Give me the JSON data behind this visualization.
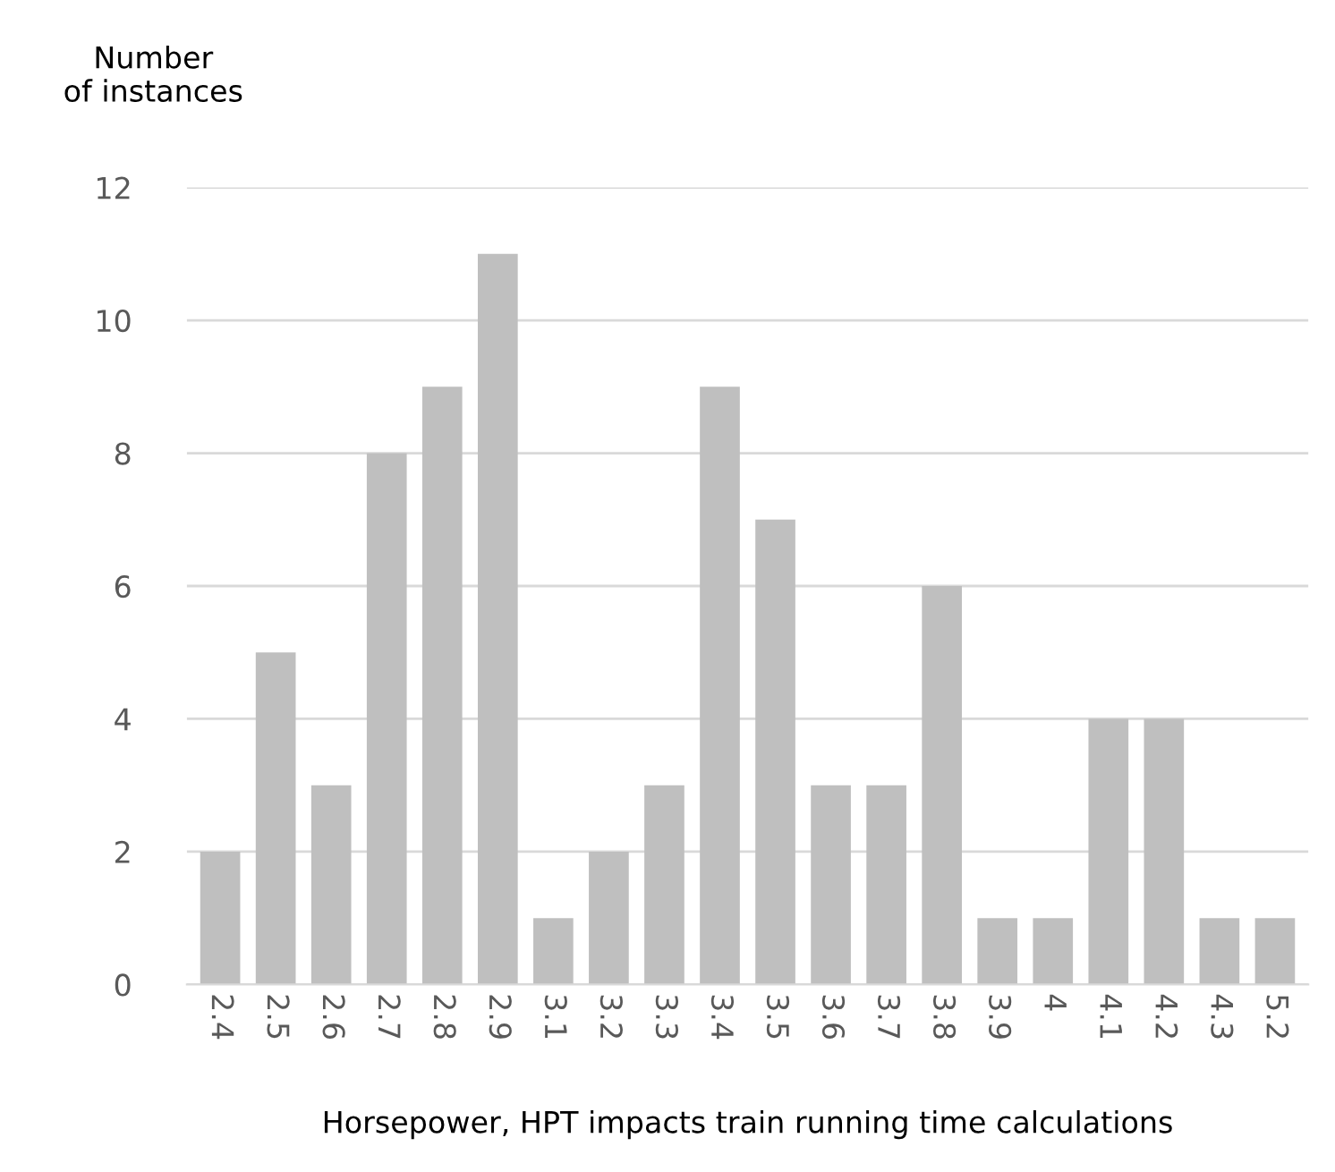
{
  "chart_data": {
    "type": "bar",
    "ylabel": "Number\nof instances",
    "xlabel": "Horsepower, HPT impacts train running time calculations",
    "categories": [
      "2.4",
      "2.5",
      "2.6",
      "2.7",
      "2.8",
      "2.9",
      "3.1",
      "3.2",
      "3.3",
      "3.4",
      "3.5",
      "3.6",
      "3.7",
      "3.8",
      "3.9",
      "4",
      "4.1",
      "4.2",
      "4.3",
      "5.2"
    ],
    "values": [
      2,
      5,
      3,
      8,
      9,
      11,
      1,
      2,
      3,
      9,
      7,
      3,
      3,
      6,
      1,
      1,
      4,
      4,
      1,
      1
    ],
    "color": "#bfbfbf",
    "ylim": [
      0,
      12
    ],
    "yticks": [
      0,
      2,
      4,
      6,
      8,
      10,
      12
    ],
    "grid": "y"
  }
}
